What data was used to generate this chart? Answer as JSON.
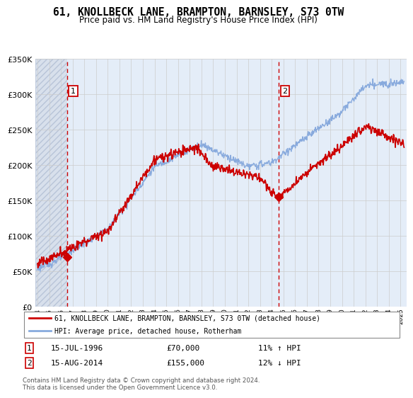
{
  "title": "61, KNOLLBECK LANE, BRAMPTON, BARNSLEY, S73 0TW",
  "subtitle": "Price paid vs. HM Land Registry's House Price Index (HPI)",
  "legend_line1": "61, KNOLLBECK LANE, BRAMPTON, BARNSLEY, S73 0TW (detached house)",
  "legend_line2": "HPI: Average price, detached house, Rotherham",
  "transaction1_label": "1",
  "transaction1_date": "15-JUL-1996",
  "transaction1_price": "£70,000",
  "transaction1_hpi": "11% ↑ HPI",
  "transaction1_year": 1996.54,
  "transaction1_value": 70000,
  "transaction2_label": "2",
  "transaction2_date": "15-AUG-2014",
  "transaction2_price": "£155,000",
  "transaction2_hpi": "12% ↓ HPI",
  "transaction2_year": 2014.62,
  "transaction2_value": 155000,
  "price_line_color": "#cc0000",
  "hpi_line_color": "#88aadd",
  "ylim": [
    0,
    350000
  ],
  "xlim_start": 1993.8,
  "xlim_end": 2025.5,
  "footer": "Contains HM Land Registry data © Crown copyright and database right 2024.\nThis data is licensed under the Open Government Licence v3.0."
}
